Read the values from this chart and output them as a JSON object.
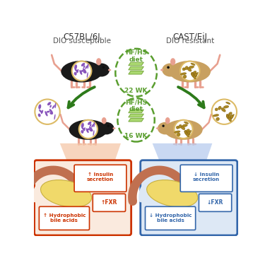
{
  "bg_color": "#ffffff",
  "left_label1": "C57BL/6J",
  "left_label2": "DIO susceptible",
  "right_label1": "CAST/EiJ",
  "right_label2": "DIO resistant",
  "weeks1": "22 WK",
  "weeks2": "16 WK",
  "left_box_color": "#cc3300",
  "right_box_color": "#3366aa",
  "left_bg_color": "#faeade",
  "right_bg_color": "#dde8f5",
  "arrow_color": "#2d7a1a",
  "dashed_ellipse_color": "#5a9e2f",
  "pancreas_yellow": "#f0d96a",
  "pancreas_brown": "#c07050",
  "bacteria_purple": "#8855bb",
  "bacteria_brown": "#aa8822",
  "bacteria_border": "#ddbb66",
  "tan_mouse_color": "#c8a060",
  "black_mouse_color": "#1a1a1a",
  "pink_color": "#e8a090",
  "food_color": "#aad870",
  "food_edge": "#7aaa40"
}
